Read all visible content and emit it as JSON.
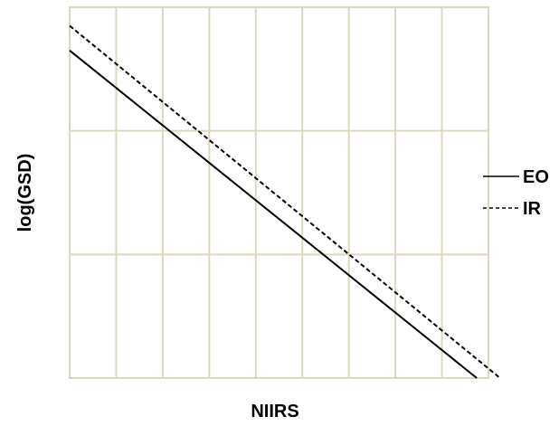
{
  "chart_data": {
    "type": "line",
    "title": "",
    "xlabel": "NIIRS",
    "ylabel": "log(GSD)",
    "grid": true,
    "grid_color": "#ddd7c0",
    "x_divisions": 9,
    "y_divisions": 3,
    "xlim": [
      0,
      9
    ],
    "ylim": [
      0,
      3
    ],
    "legend_position": "right",
    "series": [
      {
        "name": "EO",
        "style": "solid",
        "color": "#000000",
        "x": [
          0,
          8.75
        ],
        "y": [
          2.65,
          0
        ]
      },
      {
        "name": "IR",
        "style": "dashed",
        "color": "#000000",
        "x": [
          0,
          9.25
        ],
        "y": [
          2.85,
          0
        ]
      }
    ]
  }
}
